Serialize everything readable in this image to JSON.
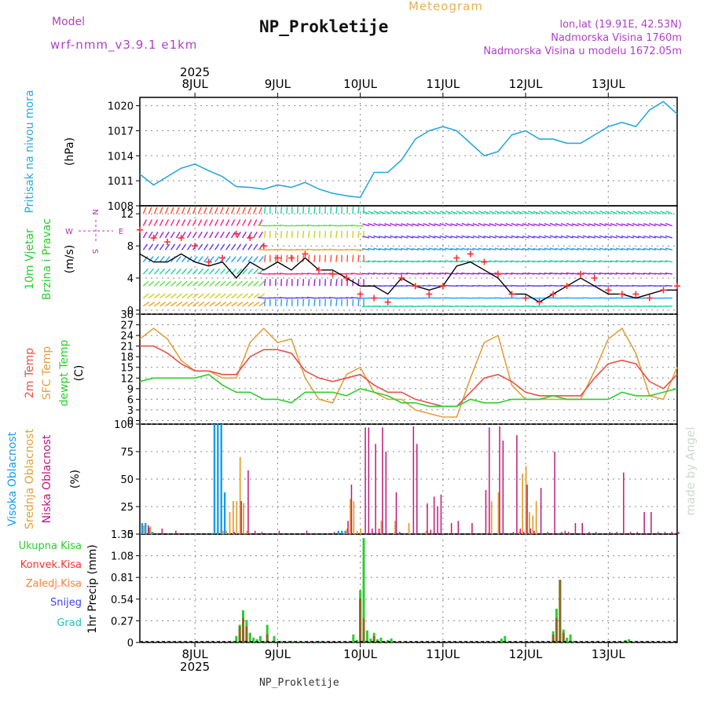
{
  "header": {
    "title": "NP_Prokletije",
    "subtitle": "Meteogram",
    "model_label": "Model",
    "model_name": "wrf-nmm_v3.9.1  e1km",
    "coords": "lon,lat (19.91E, 42.53N)",
    "altitude": "Nadmorska Visina 1760m",
    "model_altitude": "Nadmorska Visina u modelu 1672.05m",
    "footer": "NP_Prokletije",
    "watermark": "made by Angel"
  },
  "colors": {
    "pressure": "#29a8e0",
    "wind_black": "#000000",
    "wind_red": "#ff3030",
    "temp2m": "#e8504a",
    "sfc": "#e0a040",
    "dewpt": "#2ecc30",
    "cloud_high": "#1a9be6",
    "cloud_mid": "#e6a030",
    "cloud_low": "#c0187a",
    "precip_total": "#2ecc30",
    "precip_conv": "#ff3030",
    "precip_frz": "#ff8030",
    "snow": "#4040ff",
    "hail": "#20c0c0",
    "compass": "#b030c0"
  },
  "time_axis": {
    "year": "2025",
    "labels": [
      "8JUL",
      "9JUL",
      "10JUL",
      "11JUL",
      "12JUL",
      "13JUL"
    ],
    "start_hour": -16,
    "end_hour": 140
  },
  "compass": {
    "north": "N",
    "south": "S",
    "east": "E",
    "west": "W"
  },
  "chart_data": [
    {
      "type": "line",
      "panel": "pressure",
      "ylabel": [
        "Pritisak na nivou mora",
        "(hPa)"
      ],
      "yticks": [
        1008,
        1011,
        1014,
        1017,
        1020
      ],
      "ylim": [
        1008,
        1021
      ],
      "x_hours": [
        -16,
        -12,
        -8,
        -4,
        0,
        4,
        8,
        12,
        16,
        20,
        24,
        28,
        32,
        36,
        40,
        44,
        48,
        52,
        56,
        60,
        64,
        68,
        72,
        76,
        80,
        84,
        88,
        92,
        96,
        100,
        104,
        108,
        112,
        116,
        120,
        124,
        128,
        132,
        136,
        140
      ],
      "series": [
        {
          "values": [
            1011.8,
            1010.5,
            1011.5,
            1012.5,
            1013.0,
            1012.2,
            1011.5,
            1010.3,
            1010.2,
            1010.0,
            1010.5,
            1010.2,
            1010.8,
            1010.0,
            1009.5,
            1009.2,
            1009.0,
            1012.0,
            1012.0,
            1013.5,
            1016.0,
            1017.0,
            1017.5,
            1017.0,
            1015.5,
            1014.0,
            1014.5,
            1016.5,
            1017.0,
            1016.0,
            1016.0,
            1015.5,
            1015.5,
            1016.5,
            1017.5,
            1018.0,
            1017.5,
            1019.5,
            1020.5,
            1019.0
          ]
        }
      ]
    },
    {
      "type": "line",
      "panel": "wind",
      "ylabel": [
        "10m Vjetar",
        "Brzina i Pravac",
        "(m/s)"
      ],
      "yticks": [
        0,
        4,
        8,
        12
      ],
      "ylim": [
        -0.5,
        13
      ],
      "x_hours": [
        -16,
        -12,
        -8,
        -4,
        0,
        4,
        8,
        12,
        16,
        20,
        24,
        28,
        32,
        36,
        40,
        44,
        48,
        52,
        56,
        60,
        64,
        68,
        72,
        76,
        80,
        84,
        88,
        92,
        96,
        100,
        104,
        108,
        112,
        116,
        120,
        124,
        128,
        132,
        136,
        140
      ],
      "series": [
        {
          "values": [
            7.0,
            6.0,
            6.0,
            7.0,
            6.0,
            5.5,
            6.0,
            4.0,
            6.0,
            5.0,
            6.0,
            5.0,
            6.5,
            5.0,
            5.0,
            4.0,
            3.0,
            3.0,
            2.0,
            4.0,
            3.0,
            2.5,
            3.0,
            5.5,
            6.0,
            5.0,
            4.0,
            2.0,
            2.0,
            1.0,
            2.0,
            3.0,
            4.0,
            3.0,
            2.0,
            2.0,
            1.5,
            2.0,
            2.5,
            2.5
          ]
        },
        {
          "values": [
            10.0,
            9.0,
            8.5,
            9.0,
            8.0,
            6.0,
            6.5,
            9.5,
            9.0,
            8.0,
            6.5,
            6.5,
            7.0,
            5.0,
            4.5,
            4.0,
            2.0,
            1.5,
            1.0,
            4.0,
            3.0,
            2.0,
            3.0,
            6.5,
            7.0,
            6.0,
            4.5,
            2.0,
            1.5,
            1.0,
            2.0,
            3.0,
            4.5,
            4.0,
            2.5,
            2.0,
            2.0,
            1.5,
            2.5,
            3.0
          ]
        }
      ]
    },
    {
      "type": "line",
      "panel": "temperature",
      "ylabel": [
        "2m Temp",
        "SFC Temp",
        "dewpt Temp",
        "(C)"
      ],
      "yticks": [
        0,
        3,
        6,
        9,
        12,
        15,
        18,
        21,
        24,
        27,
        30
      ],
      "ylim": [
        -1,
        30
      ],
      "x_hours": [
        -16,
        -12,
        -8,
        -4,
        0,
        4,
        8,
        12,
        16,
        20,
        24,
        28,
        32,
        36,
        40,
        44,
        48,
        52,
        56,
        60,
        64,
        68,
        72,
        76,
        80,
        84,
        88,
        92,
        96,
        100,
        104,
        108,
        112,
        116,
        120,
        124,
        128,
        132,
        136,
        140
      ],
      "series": [
        {
          "values": [
            21,
            21,
            19,
            16,
            14,
            14,
            13,
            13,
            18,
            20,
            20,
            19,
            14,
            12,
            11,
            12,
            13,
            10,
            8,
            8,
            6,
            5,
            4,
            4,
            8,
            12,
            13,
            11,
            8,
            7,
            7,
            7,
            7,
            12,
            16,
            17,
            16,
            11,
            9,
            13
          ]
        },
        {
          "values": [
            23,
            26,
            23,
            17,
            14,
            14,
            12,
            12,
            22,
            26,
            22,
            23,
            12,
            6,
            5,
            13,
            15,
            8,
            6,
            6,
            3,
            2,
            1,
            1,
            12,
            22,
            24,
            10,
            6,
            6,
            6,
            6,
            6,
            14,
            23,
            26,
            19,
            7,
            6,
            15
          ]
        },
        {
          "values": [
            11,
            12,
            12,
            12,
            12,
            13,
            10,
            8,
            8,
            6,
            6,
            5,
            8,
            8,
            8,
            7,
            9,
            8,
            7,
            5,
            5,
            4,
            4,
            4,
            6,
            5,
            5,
            6,
            6,
            6,
            7,
            6,
            6,
            6,
            6,
            8,
            7,
            7,
            8,
            9
          ]
        }
      ]
    },
    {
      "type": "bar",
      "panel": "clouds",
      "ylabel": [
        "Visoka Oblacnost",
        "Srednja Oblacnost",
        "Niska Oblacnost",
        "(%)"
      ],
      "yticks": [
        0,
        25,
        50,
        75,
        100
      ],
      "ylim": [
        0,
        100
      ],
      "series": [
        {
          "x": [
            -15,
            -14,
            -13,
            -12,
            6,
            7,
            8,
            9,
            42,
            43,
            44
          ],
          "values": [
            10,
            10,
            6,
            2,
            100,
            100,
            100,
            38,
            3,
            3,
            3
          ]
        },
        {
          "x": [
            -15,
            -13,
            8,
            9,
            10,
            11,
            12,
            13,
            14,
            15,
            44,
            45,
            46,
            47,
            48,
            54,
            58,
            62,
            67,
            86,
            88,
            94,
            95,
            96,
            97,
            98,
            99
          ],
          "values": [
            8,
            7,
            3,
            3,
            20,
            30,
            30,
            70,
            28,
            3,
            5,
            32,
            30,
            3,
            5,
            12,
            12,
            10,
            3,
            30,
            38,
            2,
            55,
            62,
            20,
            17,
            30
          ]
        },
        {
          "x": [
            -14,
            -10,
            -6,
            11,
            13,
            15,
            17,
            19,
            24,
            32,
            40,
            44,
            45,
            49,
            50,
            51,
            52,
            53,
            54,
            55,
            58,
            59,
            63,
            64,
            67,
            68,
            69,
            70,
            71,
            74,
            76,
            80,
            84,
            85,
            88,
            89,
            92,
            93,
            94,
            95,
            96,
            97,
            98,
            100,
            102,
            104,
            106,
            107,
            108,
            110,
            112,
            114,
            116,
            120,
            122,
            124,
            126,
            128,
            130,
            132,
            134,
            136,
            138,
            140
          ],
          "values": [
            8,
            5,
            3,
            2,
            30,
            58,
            3,
            2,
            3,
            3,
            2,
            12,
            45,
            97,
            97,
            5,
            82,
            5,
            97,
            75,
            38,
            2,
            98,
            82,
            28,
            4,
            34,
            25,
            36,
            10,
            12,
            10,
            40,
            97,
            98,
            85,
            2,
            90,
            5,
            2,
            45,
            5,
            3,
            42,
            2,
            75,
            2,
            3,
            2,
            10,
            10,
            2,
            2,
            2,
            2,
            56,
            2,
            2,
            20,
            20,
            2,
            2,
            2,
            2
          ]
        }
      ]
    },
    {
      "type": "bar",
      "panel": "precip",
      "ylabel": [
        "Ukupna Kisa",
        "Konvek.Kisa",
        "Zaledj.Kisa",
        "Snijeg",
        "Grad",
        "1hr Precip (mm)"
      ],
      "yticks": [
        0,
        0.27,
        0.54,
        0.81,
        1.08,
        1.35
      ],
      "ylim": [
        0,
        1.35
      ],
      "series": [
        {
          "x": [
            12,
            13,
            14,
            15,
            16,
            17,
            18,
            19,
            20,
            21,
            23,
            25,
            28,
            31,
            36,
            43,
            46,
            47,
            48,
            49,
            50,
            51,
            52,
            53,
            54,
            56,
            57,
            58,
            60,
            89,
            90,
            104,
            105,
            106,
            107,
            108,
            109,
            110,
            125,
            126
          ],
          "values": [
            0.08,
            0.22,
            0.4,
            0.28,
            0.12,
            0.06,
            0.04,
            0.08,
            0.02,
            0.22,
            0.08,
            0.02,
            0.02,
            0.01,
            0.02,
            0.01,
            0.1,
            0.03,
            0.65,
            1.3,
            0.15,
            0.05,
            0.12,
            0.04,
            0.06,
            0.03,
            0.05,
            0.01,
            0.01,
            0.05,
            0.08,
            0.14,
            0.42,
            0.78,
            0.16,
            0.06,
            0.1,
            0.02,
            0.03,
            0.04
          ]
        },
        {
          "x": [
            13,
            14,
            15,
            21,
            48,
            49,
            52,
            104,
            105,
            106,
            107,
            125
          ],
          "values": [
            0.2,
            0.3,
            0.2,
            0.1,
            0.55,
            0.3,
            0.08,
            0.1,
            0.3,
            0.78,
            0.12,
            0.02
          ]
        }
      ]
    }
  ]
}
